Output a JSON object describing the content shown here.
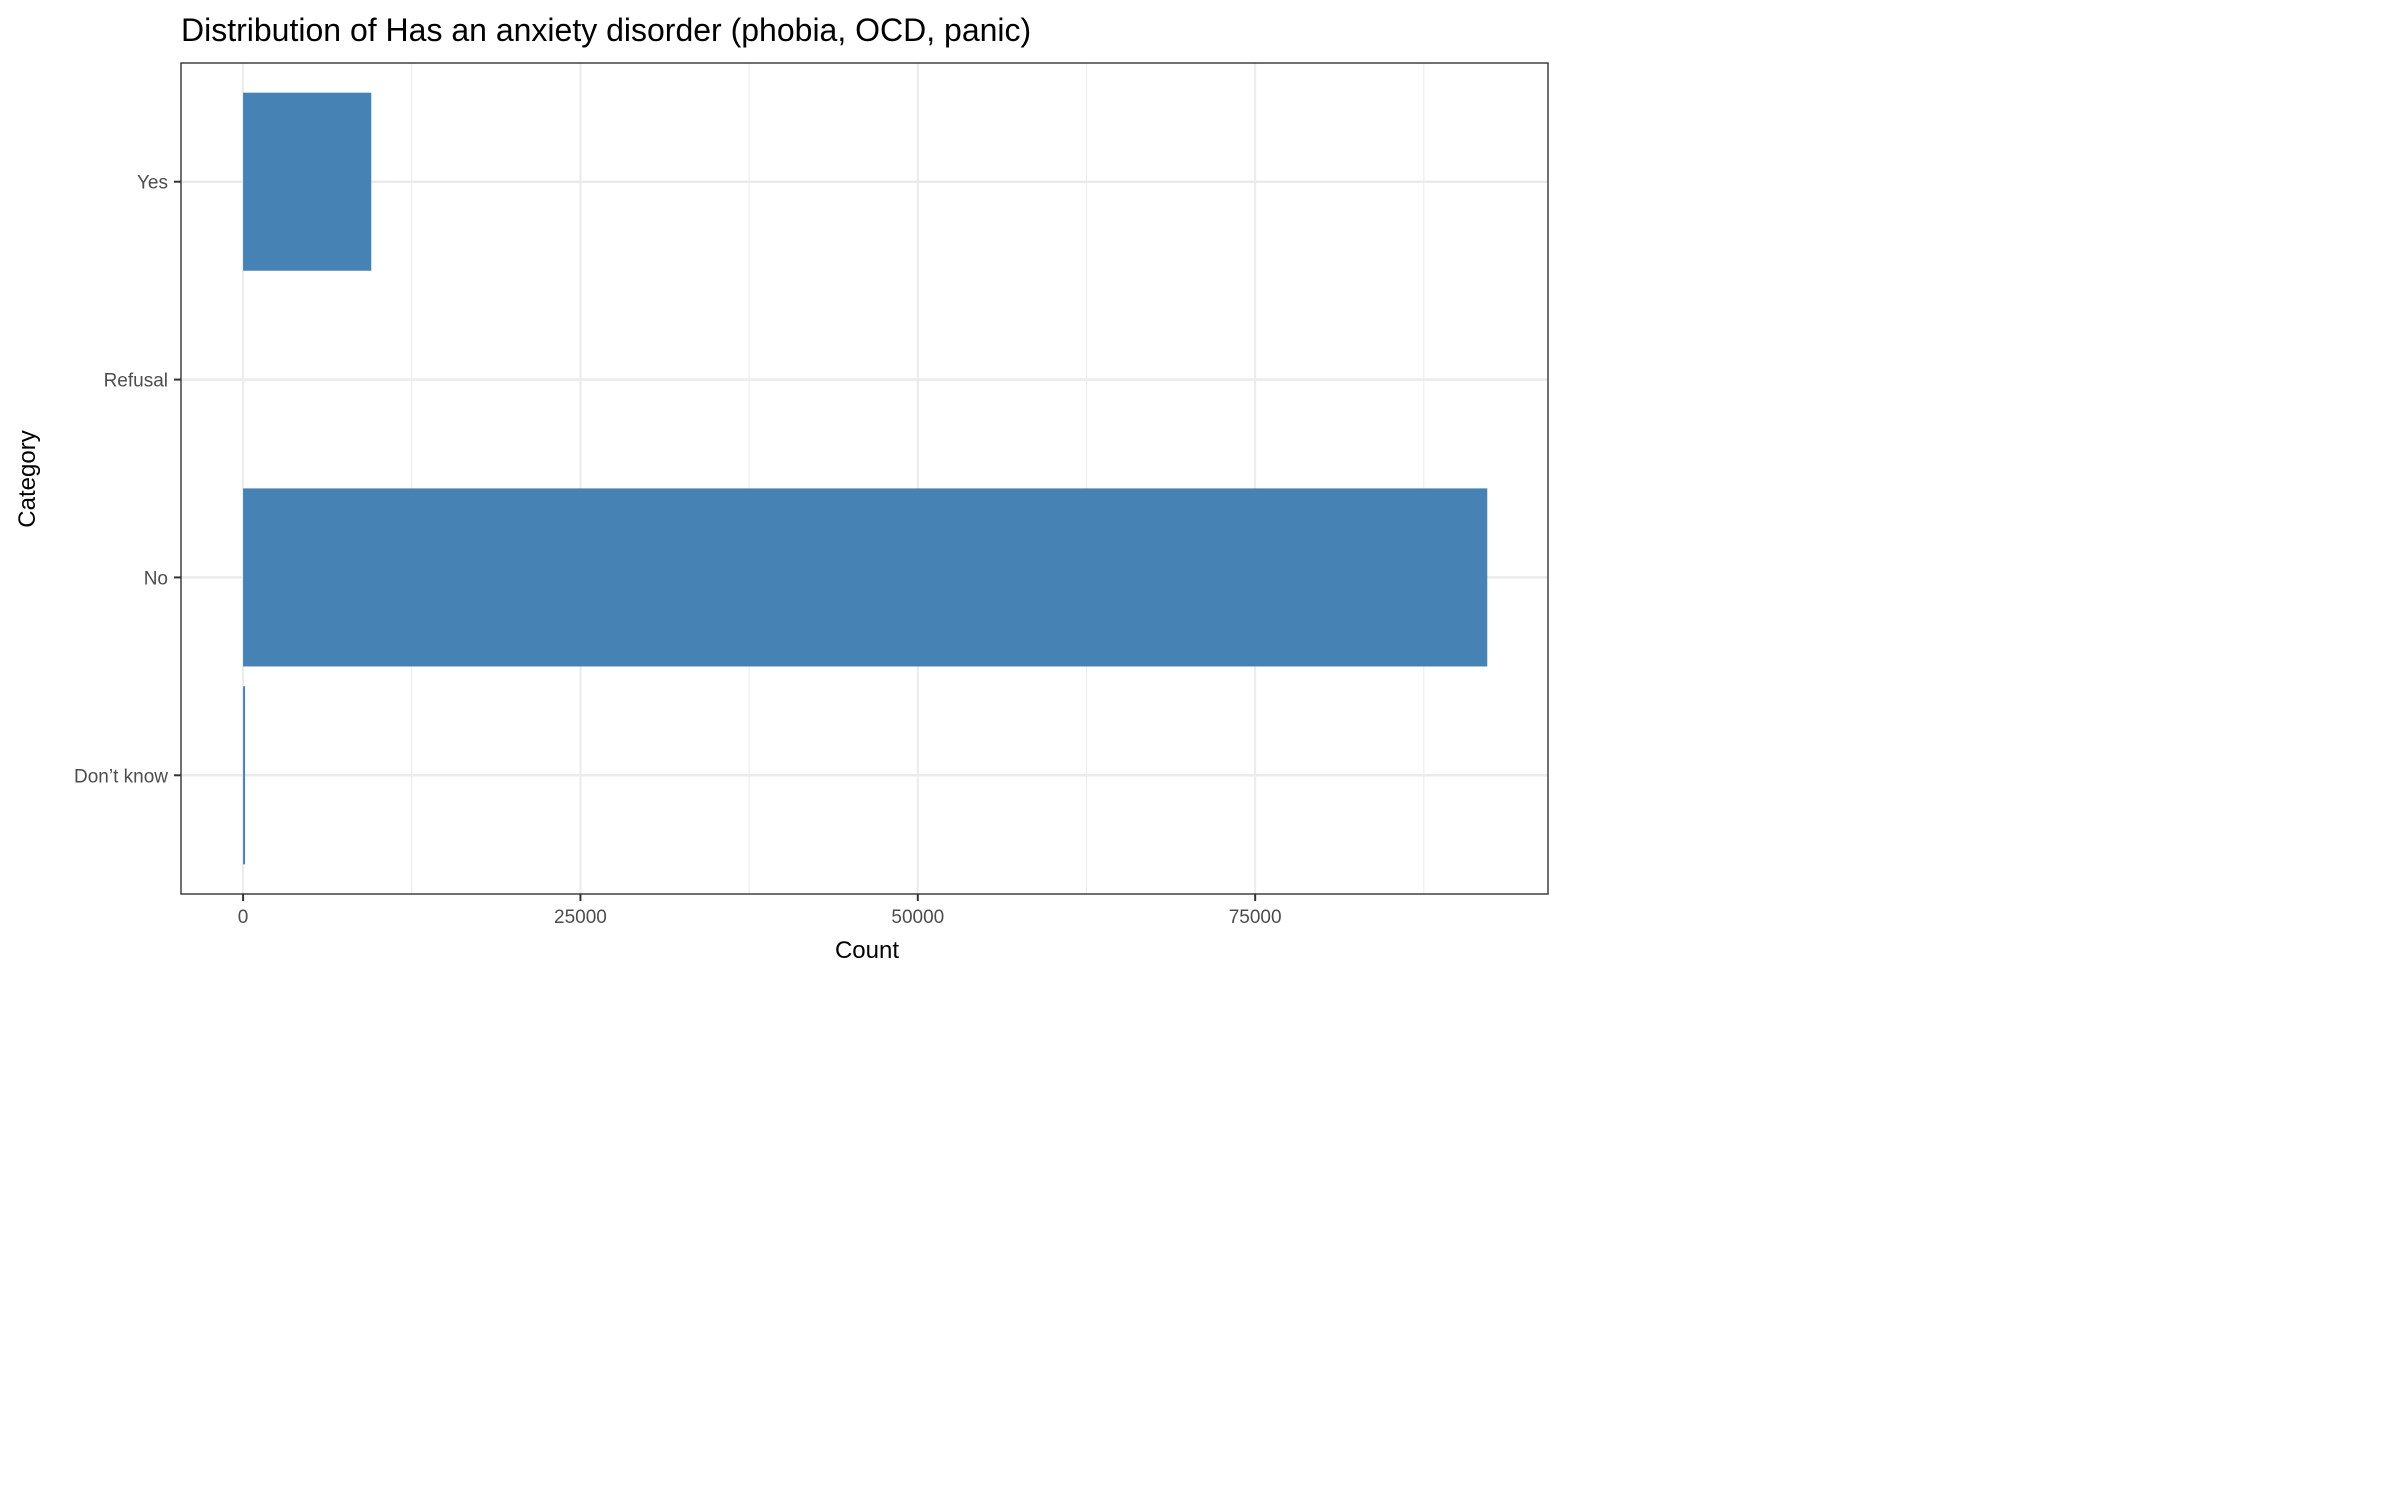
{
  "chart_data": {
    "type": "bar",
    "orientation": "horizontal",
    "title": "Distribution of Has an anxiety disorder (phobia, OCD, panic)",
    "xlabel": "Count",
    "ylabel": "Category",
    "categories": [
      "Don’t know",
      "No",
      "Refusal",
      "Yes"
    ],
    "values": [
      120,
      92200,
      0,
      9500
    ],
    "xlim": [
      -4600,
      96700
    ],
    "x_ticks": [
      0,
      25000,
      50000,
      75000
    ],
    "x_tick_labels": [
      "0",
      "25000",
      "50000",
      "75000"
    ],
    "grid": true,
    "bar_color": "#4682b4"
  }
}
